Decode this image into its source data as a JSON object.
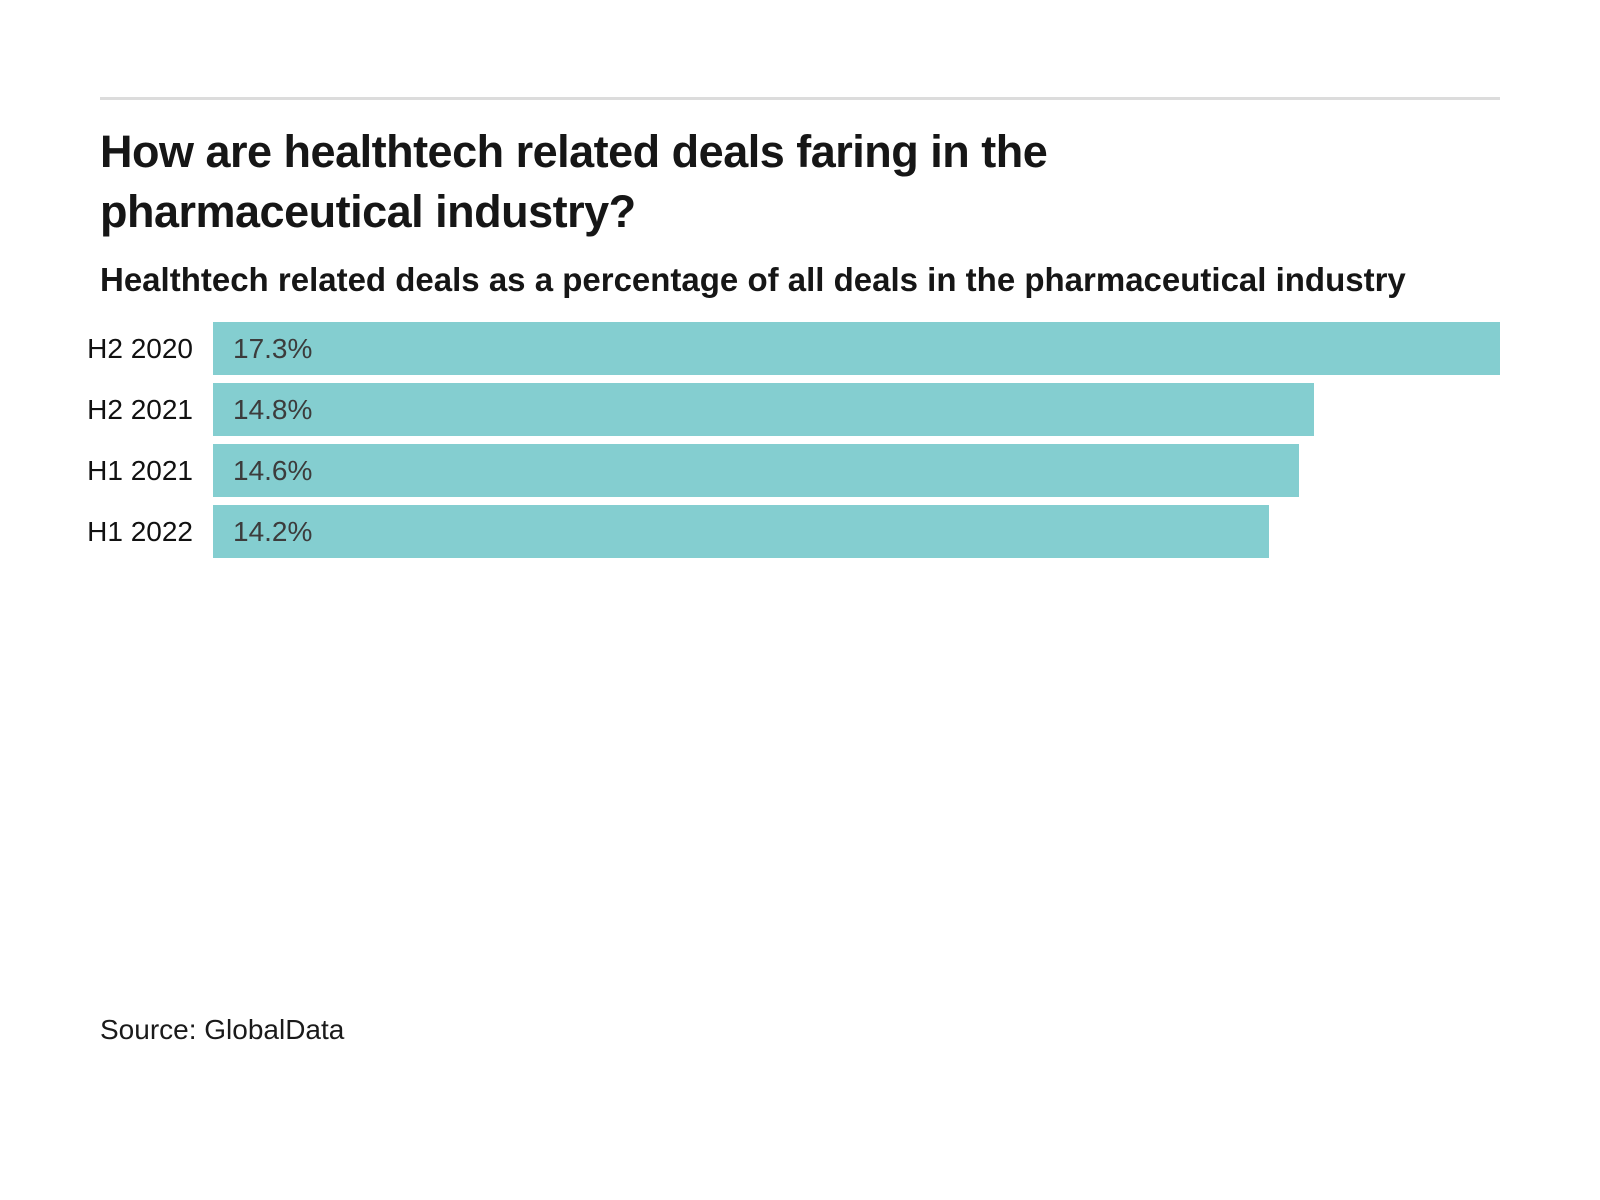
{
  "page": {
    "background": "#ffffff",
    "divider_color": "#dcdcdc"
  },
  "header": {
    "title": "How are healthtech related deals faring in the pharmaceutical industry?",
    "subtitle": "Healthtech related deals as a percentage of all deals in the pharmaceutical industry"
  },
  "chart_data": {
    "type": "bar",
    "orientation": "horizontal",
    "title": "How are healthtech related deals faring in the pharmaceutical industry?",
    "subtitle": "Healthtech related deals as a percentage of all deals in the pharmaceutical industry",
    "categories": [
      "H2 2020",
      "H2 2021",
      "H1 2021",
      "H1 2022"
    ],
    "values": [
      17.3,
      14.8,
      14.6,
      14.2
    ],
    "value_labels": [
      "17.3%",
      "14.8%",
      "14.6%",
      "14.2%"
    ],
    "xlim": [
      0,
      17.3
    ],
    "bar_color": "#84CED0",
    "category_label_color": "#111111",
    "value_label_color": "#3c3c3c",
    "grid": false,
    "legend": false,
    "value_label_position": "inside-left",
    "category_label_position": "left"
  },
  "footer": {
    "source": "Source: GlobalData"
  }
}
